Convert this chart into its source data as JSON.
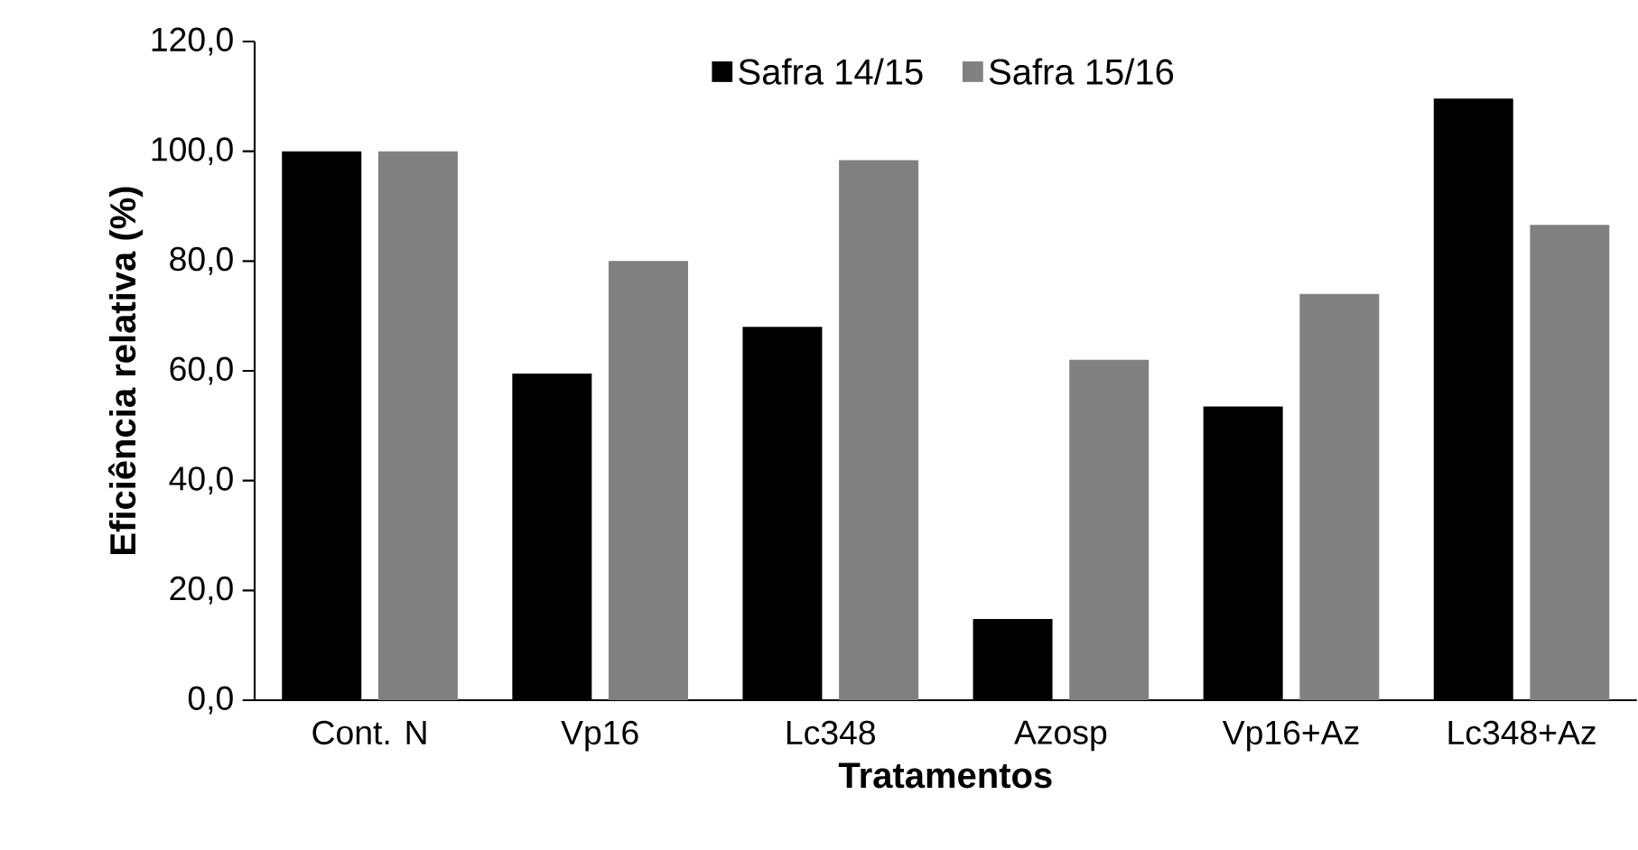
{
  "chart_data": {
    "type": "bar",
    "xlabel": "Tratamentos",
    "ylabel": "Eficiência relativa (%)",
    "categories": [
      "Cont. N",
      "Vp16",
      "Lc348",
      "Azosp",
      "Vp16+Az",
      "Lc348+Az"
    ],
    "series": [
      {
        "name": "Safra 14/15",
        "color": "#000000",
        "values": [
          100,
          59.5,
          68,
          14.8,
          53.5,
          109.6
        ]
      },
      {
        "name": "Safra 15/16",
        "color": "#808080",
        "values": [
          100,
          80,
          98.4,
          62,
          74,
          86.6
        ]
      }
    ],
    "ylim": [
      0,
      120
    ],
    "yticks": [
      {
        "value": 0,
        "label": "0,0"
      },
      {
        "value": 20,
        "label": "20,0"
      },
      {
        "value": 40,
        "label": "40,0"
      },
      {
        "value": 60,
        "label": "60,0"
      },
      {
        "value": 80,
        "label": "80,0"
      },
      {
        "value": 100,
        "label": "100,0"
      },
      {
        "value": 120,
        "label": "120,0"
      }
    ],
    "grid": false,
    "legend": "top"
  }
}
